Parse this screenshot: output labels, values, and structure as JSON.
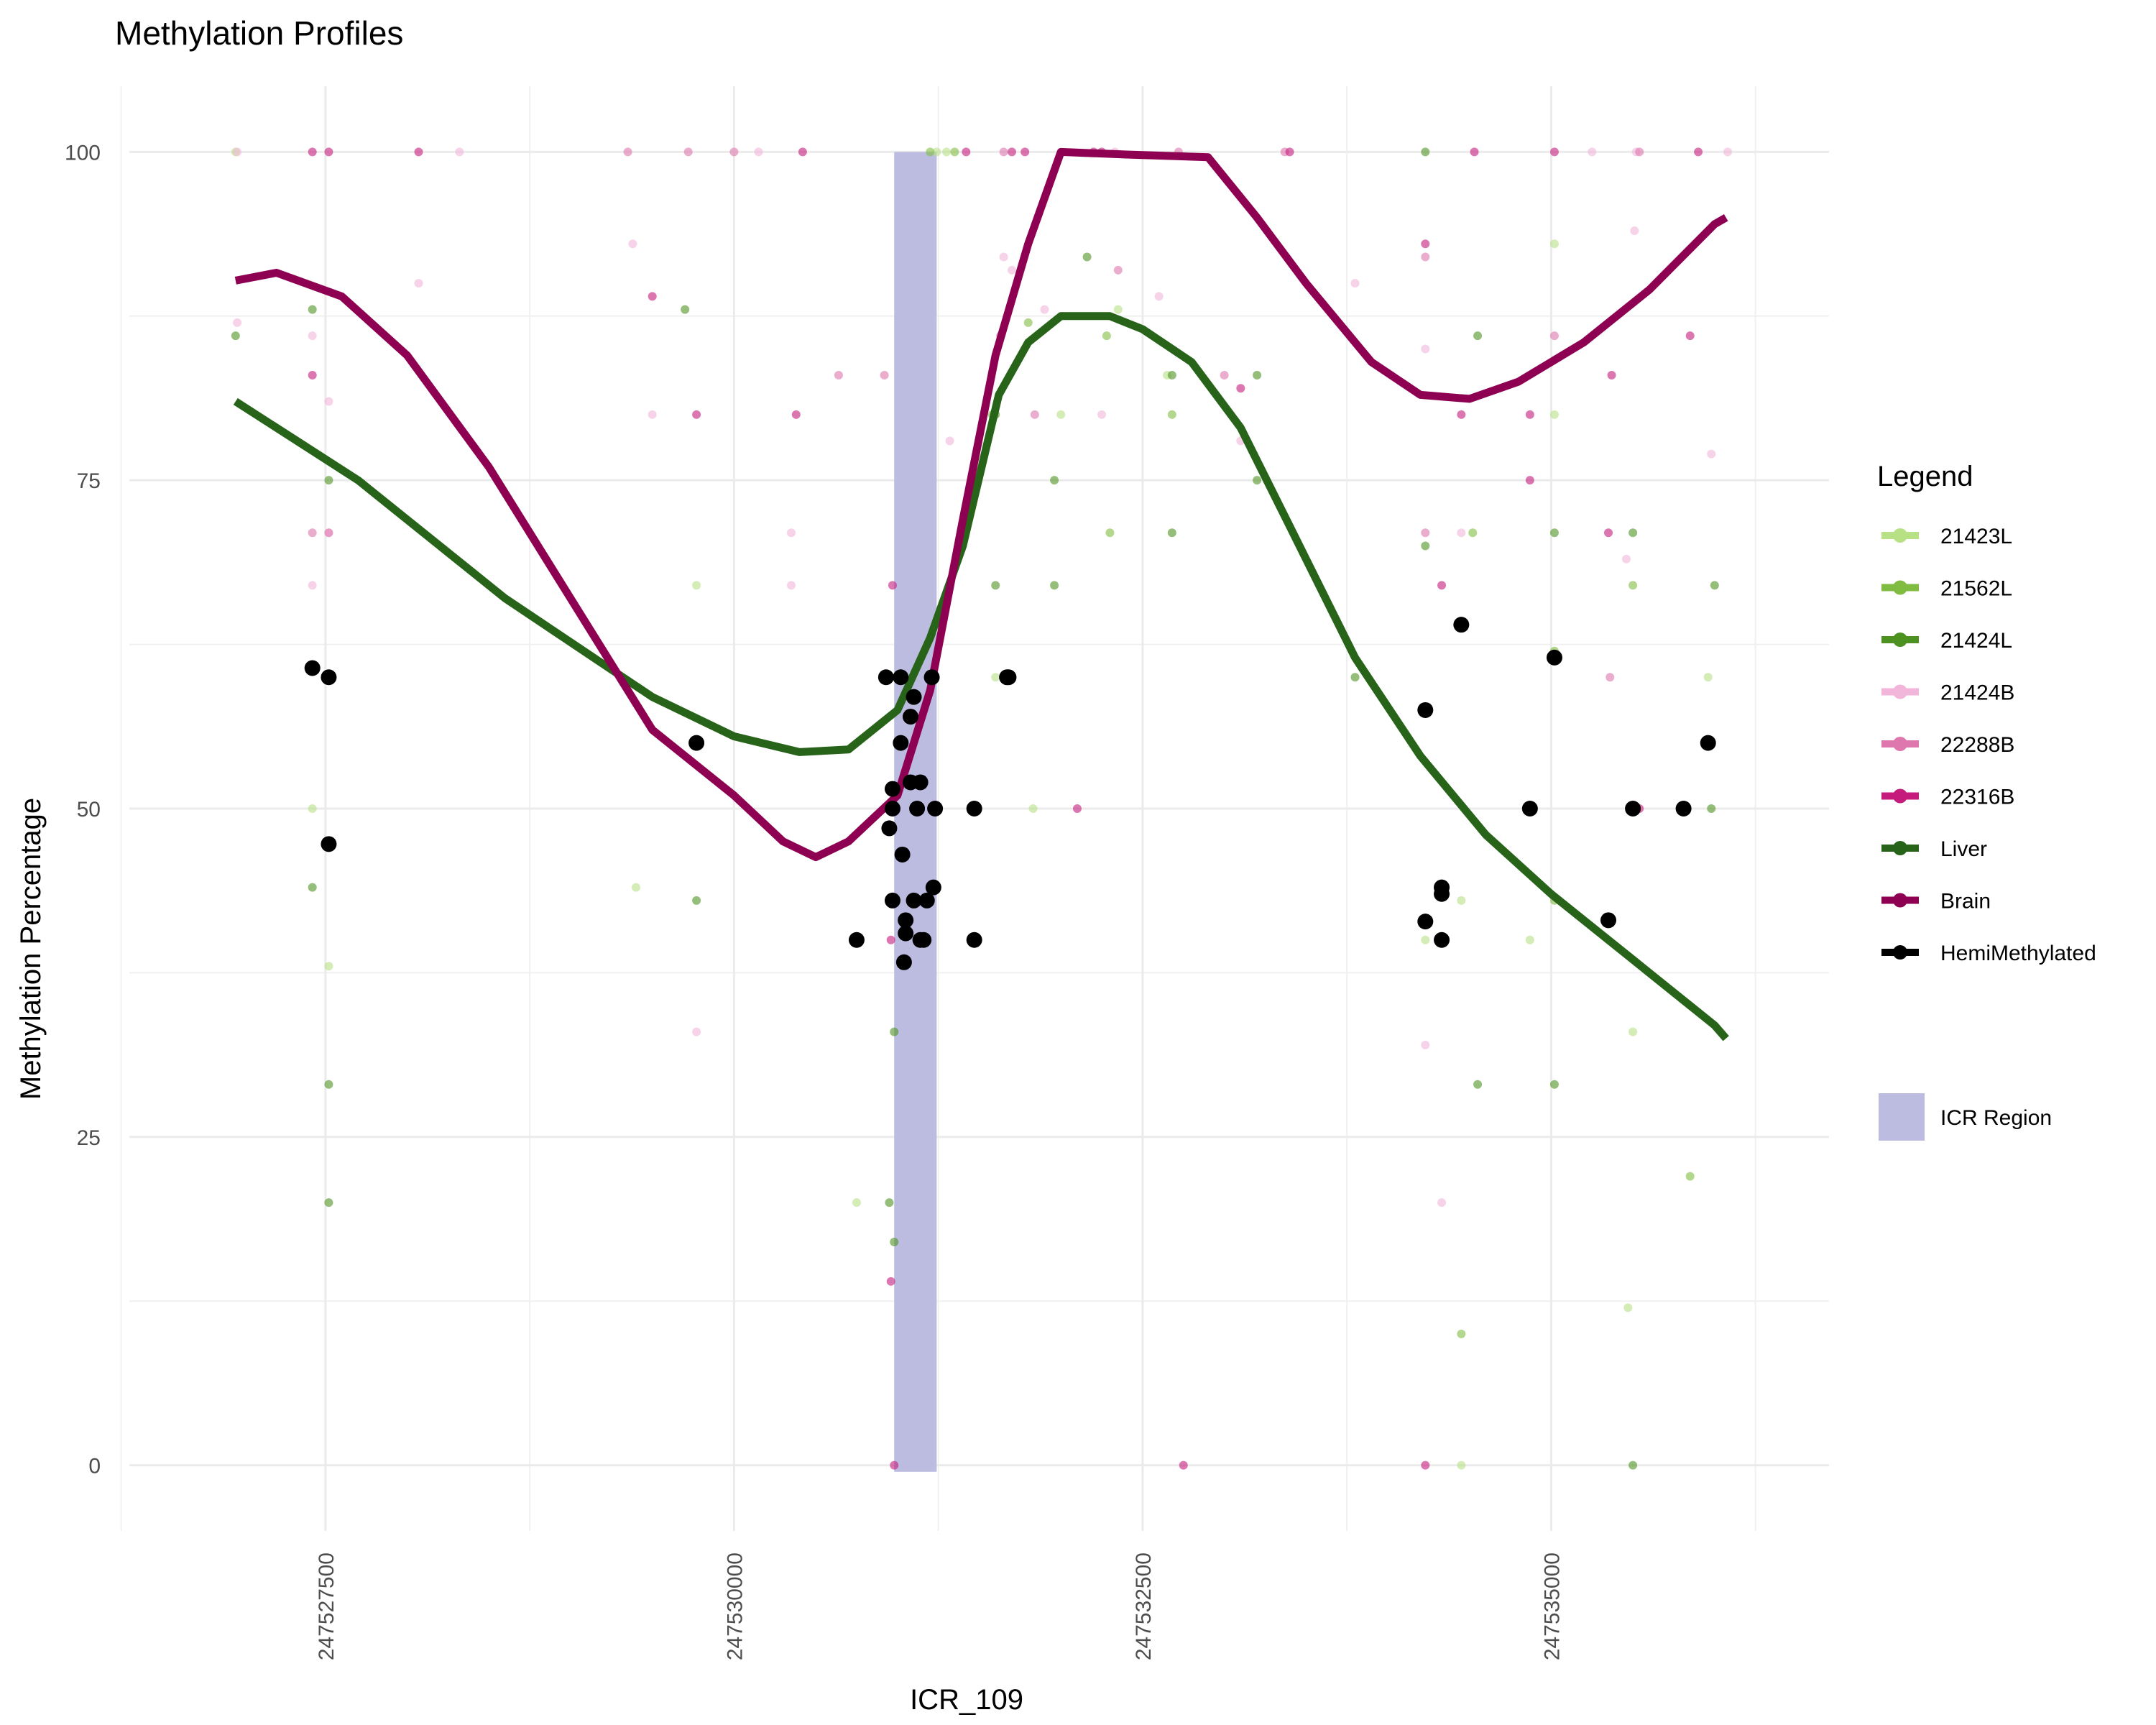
{
  "chart_data": {
    "type": "scatter",
    "title": "Methylation Profiles",
    "xlabel": "ICR_109",
    "ylabel": "Methylation Percentage",
    "xlim": [
      247526300,
      247536700
    ],
    "ylim": [
      -5,
      105
    ],
    "x_ticks": [
      247527500,
      247530000,
      247532500,
      247535000
    ],
    "x_tick_labels": [
      "247527500",
      "247530000",
      "247532500",
      "247535000"
    ],
    "y_ticks": [
      0,
      25,
      50,
      75,
      100
    ],
    "y_tick_labels": [
      "0",
      "25",
      "50",
      "75",
      "100"
    ],
    "grid": true,
    "legend_position": "right",
    "legend_title": "Legend",
    "icr_region": {
      "label": "ICR Region",
      "x_start": 247530980,
      "x_end": 247531240,
      "color": "#bcbce0"
    },
    "samples": [
      {
        "name": "21423L",
        "color": "#b8e186",
        "points": [
          [
            247526950,
            100
          ],
          [
            247527420,
            50
          ],
          [
            247527520,
            38
          ],
          [
            247529400,
            44
          ],
          [
            247529770,
            67
          ],
          [
            247530750,
            20
          ],
          [
            247531240,
            100
          ],
          [
            247531300,
            100
          ],
          [
            247531600,
            60
          ],
          [
            247531830,
            50
          ],
          [
            247532000,
            80
          ],
          [
            247532350,
            88
          ],
          [
            247532650,
            83
          ],
          [
            247534230,
            40
          ],
          [
            247534450,
            0
          ],
          [
            247534450,
            43
          ],
          [
            247534870,
            40
          ],
          [
            247535020,
            93
          ],
          [
            247535020,
            80
          ],
          [
            247535470,
            12
          ],
          [
            247535500,
            33
          ],
          [
            247535960,
            60
          ]
        ]
      },
      {
        "name": "21562L",
        "color": "#7fbc41",
        "points": [
          [
            247531200,
            100
          ],
          [
            247531350,
            100
          ],
          [
            247531580,
            80
          ],
          [
            247531800,
            87
          ],
          [
            247532280,
            86
          ],
          [
            247532300,
            71
          ],
          [
            247532680,
            80
          ],
          [
            247534450,
            10
          ],
          [
            247534520,
            71
          ],
          [
            247535020,
            62
          ],
          [
            247535020,
            43
          ],
          [
            247535500,
            67
          ],
          [
            247535850,
            22
          ]
        ]
      },
      {
        "name": "21424L",
        "color": "#4d9221",
        "points": [
          [
            247526950,
            86
          ],
          [
            247527420,
            88
          ],
          [
            247527420,
            44
          ],
          [
            247527520,
            75
          ],
          [
            247527520,
            29
          ],
          [
            247527520,
            20
          ],
          [
            247529700,
            88
          ],
          [
            247529770,
            43
          ],
          [
            247530950,
            20
          ],
          [
            247530980,
            33
          ],
          [
            247530980,
            17
          ],
          [
            247531600,
            67
          ],
          [
            247531600,
            80
          ],
          [
            247531960,
            75
          ],
          [
            247531960,
            67
          ],
          [
            247532160,
            92
          ],
          [
            247532680,
            71
          ],
          [
            247532680,
            83
          ],
          [
            247533200,
            75
          ],
          [
            247533200,
            83
          ],
          [
            247533800,
            60
          ],
          [
            247534230,
            100
          ],
          [
            247534230,
            70
          ],
          [
            247534550,
            29
          ],
          [
            247534550,
            86
          ],
          [
            247535020,
            71
          ],
          [
            247535020,
            29
          ],
          [
            247535500,
            71
          ],
          [
            247535500,
            0
          ],
          [
            247535980,
            50
          ],
          [
            247536000,
            67
          ]
        ]
      },
      {
        "name": "21424B",
        "color": "#f1b6da",
        "points": [
          [
            247526960,
            100
          ],
          [
            247526960,
            87
          ],
          [
            247527420,
            86
          ],
          [
            247527420,
            67
          ],
          [
            247527520,
            81
          ],
          [
            247527520,
            71
          ],
          [
            247528070,
            90
          ],
          [
            247528320,
            100
          ],
          [
            247529380,
            93
          ],
          [
            247529500,
            80
          ],
          [
            247529770,
            33
          ],
          [
            247530150,
            100
          ],
          [
            247530350,
            71
          ],
          [
            247530350,
            67
          ],
          [
            247531320,
            78
          ],
          [
            247531650,
            92
          ],
          [
            247531700,
            91
          ],
          [
            247531900,
            88
          ],
          [
            247532250,
            80
          ],
          [
            247532330,
            100
          ],
          [
            247532600,
            89
          ],
          [
            247533100,
            78
          ],
          [
            247533800,
            90
          ],
          [
            247534230,
            85
          ],
          [
            247534230,
            32
          ],
          [
            247534330,
            20
          ],
          [
            247534450,
            71
          ],
          [
            247535250,
            100
          ],
          [
            247535460,
            69
          ],
          [
            247535510,
            94
          ],
          [
            247535520,
            100
          ],
          [
            247535980,
            77
          ],
          [
            247536080,
            100
          ]
        ]
      },
      {
        "name": "22288B",
        "color": "#de77ae",
        "points": [
          [
            247527420,
            71
          ],
          [
            247527520,
            71
          ],
          [
            247529350,
            100
          ],
          [
            247529720,
            100
          ],
          [
            247530000,
            100
          ],
          [
            247530640,
            83
          ],
          [
            247530920,
            83
          ],
          [
            247531630,
            86
          ],
          [
            247531650,
            100
          ],
          [
            247531840,
            80
          ],
          [
            247532350,
            91
          ],
          [
            247532720,
            100
          ],
          [
            247533000,
            83
          ],
          [
            247533370,
            100
          ],
          [
            247534230,
            92
          ],
          [
            247534230,
            71
          ],
          [
            247535020,
            86
          ],
          [
            247535360,
            60
          ],
          [
            247535540,
            100
          ]
        ]
      },
      {
        "name": "22316B",
        "color": "#c51b7d",
        "points": [
          [
            247527420,
            100
          ],
          [
            247527420,
            83
          ],
          [
            247527520,
            100
          ],
          [
            247528070,
            100
          ],
          [
            247529500,
            89
          ],
          [
            247529770,
            80
          ],
          [
            247530420,
            100
          ],
          [
            247530380,
            80
          ],
          [
            247530970,
            67
          ],
          [
            247530960,
            14
          ],
          [
            247530980,
            0
          ],
          [
            247530960,
            40
          ],
          [
            247531420,
            100
          ],
          [
            247531700,
            100
          ],
          [
            247531780,
            100
          ],
          [
            247532100,
            50
          ],
          [
            247532200,
            100
          ],
          [
            247532250,
            100
          ],
          [
            247532750,
            0
          ],
          [
            247533100,
            82
          ],
          [
            247533400,
            100
          ],
          [
            247534230,
            93
          ],
          [
            247534230,
            0
          ],
          [
            247534330,
            67
          ],
          [
            247534450,
            80
          ],
          [
            247534530,
            100
          ],
          [
            247534870,
            80
          ],
          [
            247534870,
            75
          ],
          [
            247535020,
            100
          ],
          [
            247535350,
            71
          ],
          [
            247535370,
            83
          ],
          [
            247535540,
            50
          ],
          [
            247535850,
            86
          ],
          [
            247535900,
            100
          ]
        ]
      },
      {
        "name": "HemiMethylated",
        "color": "#000000",
        "points": [
          [
            247527420,
            60.7
          ],
          [
            247527520,
            60
          ],
          [
            247527520,
            47.3
          ],
          [
            247529770,
            55
          ],
          [
            247530750,
            40
          ],
          [
            247530930,
            60
          ],
          [
            247530950,
            48.5
          ],
          [
            247530970,
            43
          ],
          [
            247530970,
            50
          ],
          [
            247530970,
            51.5
          ],
          [
            247531020,
            60
          ],
          [
            247531020,
            55
          ],
          [
            247531030,
            46.5
          ],
          [
            247531050,
            41.5
          ],
          [
            247531050,
            40.5
          ],
          [
            247531040,
            38.3
          ],
          [
            247531080,
            57
          ],
          [
            247531080,
            52
          ],
          [
            247531100,
            43
          ],
          [
            247531100,
            58.5
          ],
          [
            247531120,
            50
          ],
          [
            247531140,
            52
          ],
          [
            247531140,
            40
          ],
          [
            247531160,
            40
          ],
          [
            247531180,
            43
          ],
          [
            247531210,
            60
          ],
          [
            247531220,
            44
          ],
          [
            247531230,
            50
          ],
          [
            247531470,
            40
          ],
          [
            247531470,
            50
          ],
          [
            247531670,
            60
          ],
          [
            247531680,
            60
          ],
          [
            247534230,
            57.5
          ],
          [
            247534230,
            41.4
          ],
          [
            247534330,
            40
          ],
          [
            247534330,
            44
          ],
          [
            247534330,
            43.5
          ],
          [
            247534450,
            64
          ],
          [
            247534870,
            50
          ],
          [
            247535020,
            61.5
          ],
          [
            247535350,
            41.5
          ],
          [
            247535500,
            50
          ],
          [
            247535810,
            50
          ],
          [
            247535960,
            55
          ]
        ]
      }
    ],
    "trends": [
      {
        "name": "Liver",
        "color": "#276419",
        "points": [
          [
            247526950,
            81
          ],
          [
            247527700,
            75
          ],
          [
            247528600,
            66
          ],
          [
            247529500,
            58.5
          ],
          [
            247530000,
            55.5
          ],
          [
            247530400,
            54.3
          ],
          [
            247530700,
            54.5
          ],
          [
            247531000,
            57.5
          ],
          [
            247531200,
            63
          ],
          [
            247531400,
            70
          ],
          [
            247531620,
            81.5
          ],
          [
            247531800,
            85.5
          ],
          [
            247532000,
            87.5
          ],
          [
            247532300,
            87.5
          ],
          [
            247532500,
            86.5
          ],
          [
            247532800,
            84
          ],
          [
            247533100,
            79
          ],
          [
            247533400,
            71.5
          ],
          [
            247533800,
            61.5
          ],
          [
            247534200,
            54
          ],
          [
            247534600,
            48
          ],
          [
            247535000,
            43.5
          ],
          [
            247535500,
            38.5
          ],
          [
            247536000,
            33.5
          ],
          [
            247536070,
            32.5
          ]
        ]
      },
      {
        "name": "Brain",
        "color": "#8e0152",
        "points": [
          [
            247526950,
            90.2
          ],
          [
            247527200,
            90.8
          ],
          [
            247527600,
            89
          ],
          [
            247528000,
            84.5
          ],
          [
            247528500,
            76
          ],
          [
            247529000,
            66
          ],
          [
            247529500,
            56
          ],
          [
            247530000,
            51
          ],
          [
            247530300,
            47.5
          ],
          [
            247530500,
            46.3
          ],
          [
            247530700,
            47.5
          ],
          [
            247531000,
            51
          ],
          [
            247531200,
            59
          ],
          [
            247531400,
            72
          ],
          [
            247531600,
            84.5
          ],
          [
            247531800,
            93
          ],
          [
            247532000,
            100
          ],
          [
            247532400,
            99.8
          ],
          [
            247532900,
            99.6
          ],
          [
            247533200,
            95
          ],
          [
            247533500,
            90
          ],
          [
            247533900,
            84
          ],
          [
            247534200,
            81.5
          ],
          [
            247534500,
            81.2
          ],
          [
            247534800,
            82.5
          ],
          [
            247535200,
            85.5
          ],
          [
            247535600,
            89.5
          ],
          [
            247536000,
            94.5
          ],
          [
            247536070,
            95
          ]
        ]
      }
    ]
  }
}
